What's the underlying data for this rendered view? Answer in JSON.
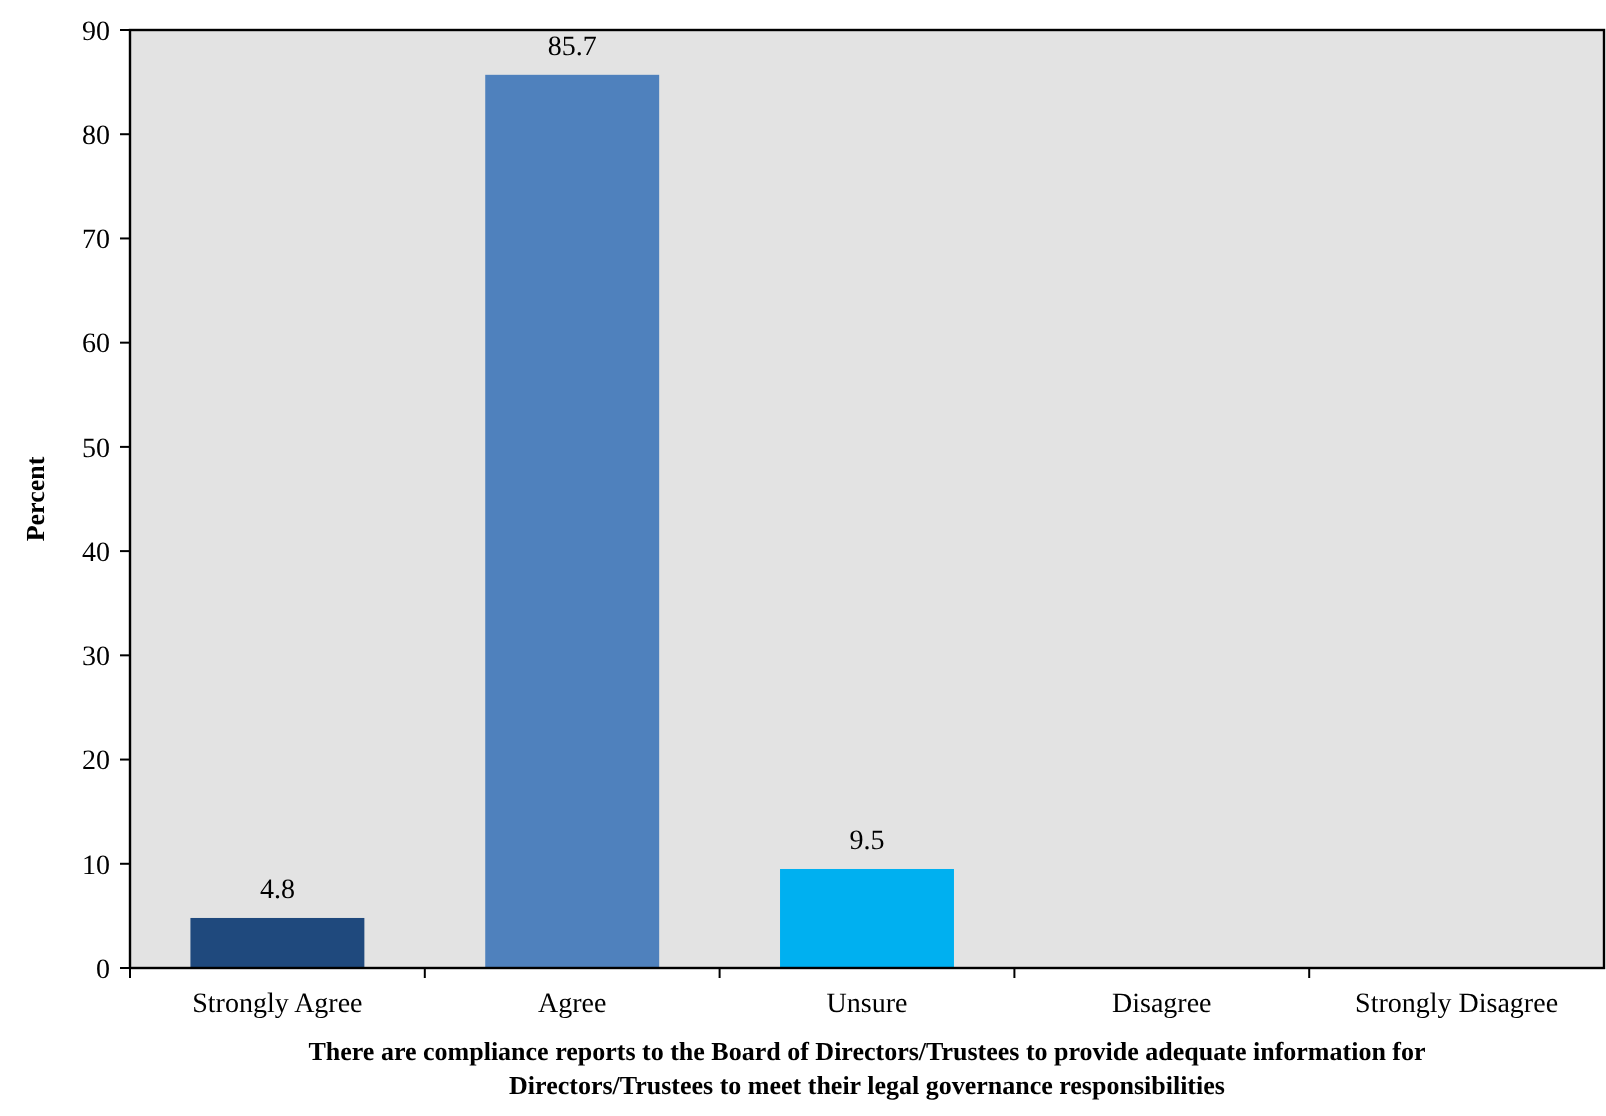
{
  "chart_data": {
    "type": "bar",
    "ylabel": "Percent",
    "xlabel": "There are compliance reports to the Board of Directors/Trustees to provide adequate information for Directors/Trustees to meet their legal governance responsibilities",
    "categories": [
      "Strongly Agree",
      "Agree",
      "Unsure",
      "Disagree",
      "Strongly Disagree"
    ],
    "values": [
      4.8,
      85.7,
      9.5,
      0,
      0
    ],
    "colors": [
      "#1f497d",
      "#4f81bd",
      "#00b0f0",
      "#7f7f7f",
      "#7f7f7f"
    ],
    "value_labels": [
      "4.8",
      "85.7",
      "9.5",
      null,
      null
    ],
    "ylim": [
      0,
      90
    ],
    "yticks": [
      0,
      10,
      20,
      30,
      40,
      50,
      60,
      70,
      80,
      90
    ],
    "grid": false
  }
}
